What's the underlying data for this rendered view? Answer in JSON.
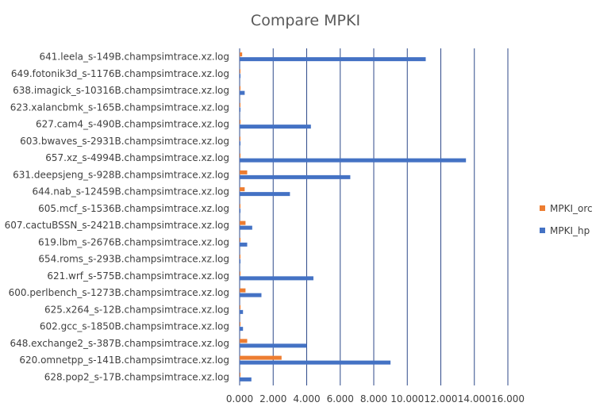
{
  "chart_data": {
    "type": "bar",
    "orientation": "horizontal",
    "title": "Compare MPKI",
    "categories": [
      "641.leela_s-149B.champsimtrace.xz.log",
      "649.fotonik3d_s-1176B.champsimtrace.xz.log",
      "638.imagick_s-10316B.champsimtrace.xz.log",
      "623.xalancbmk_s-165B.champsimtrace.xz.log",
      "627.cam4_s-490B.champsimtrace.xz.log",
      "603.bwaves_s-2931B.champsimtrace.xz.log",
      "657.xz_s-4994B.champsimtrace.xz.log",
      "631.deepsjeng_s-928B.champsimtrace.xz.log",
      "644.nab_s-12459B.champsimtrace.xz.log",
      "605.mcf_s-1536B.champsimtrace.xz.log",
      "607.cactuBSSN_s-2421B.champsimtrace.xz.log",
      "619.lbm_s-2676B.champsimtrace.xz.log",
      "654.roms_s-293B.champsimtrace.xz.log",
      "621.wrf_s-575B.champsimtrace.xz.log",
      "600.perlbench_s-1273B.champsimtrace.xz.log",
      "625.x264_s-12B.champsimtrace.xz.log",
      "602.gcc_s-1850B.champsimtrace.xz.log",
      "648.exchange2_s-387B.champsimtrace.xz.log",
      "620.omnetpp_s-141B.champsimtrace.xz.log",
      "628.pop2_s-17B.champsimtrace.xz.log"
    ],
    "series": [
      {
        "name": "MPKI_orc",
        "color": "#ED7D31",
        "values": [
          0.15,
          0.02,
          0.05,
          0.02,
          0.05,
          0.02,
          0.05,
          0.45,
          0.3,
          0.02,
          0.35,
          0.05,
          0.02,
          0.05,
          0.35,
          0.05,
          0.05,
          0.45,
          2.5,
          0.05
        ]
      },
      {
        "name": "MPKI_hp",
        "color": "#4472C4",
        "values": [
          11.1,
          0.05,
          0.3,
          0.05,
          4.25,
          0.05,
          13.5,
          6.6,
          3.0,
          0.05,
          0.75,
          0.45,
          0.05,
          4.4,
          1.3,
          0.2,
          0.2,
          4.0,
          9.0,
          0.7
        ]
      }
    ],
    "xlim": [
      0,
      16
    ],
    "x_ticks": [
      "0.000",
      "2.000",
      "4.000",
      "6.000",
      "8.000",
      "10.000",
      "12.000",
      "14.000",
      "16.000"
    ],
    "grid": true,
    "legend_position": "right"
  }
}
